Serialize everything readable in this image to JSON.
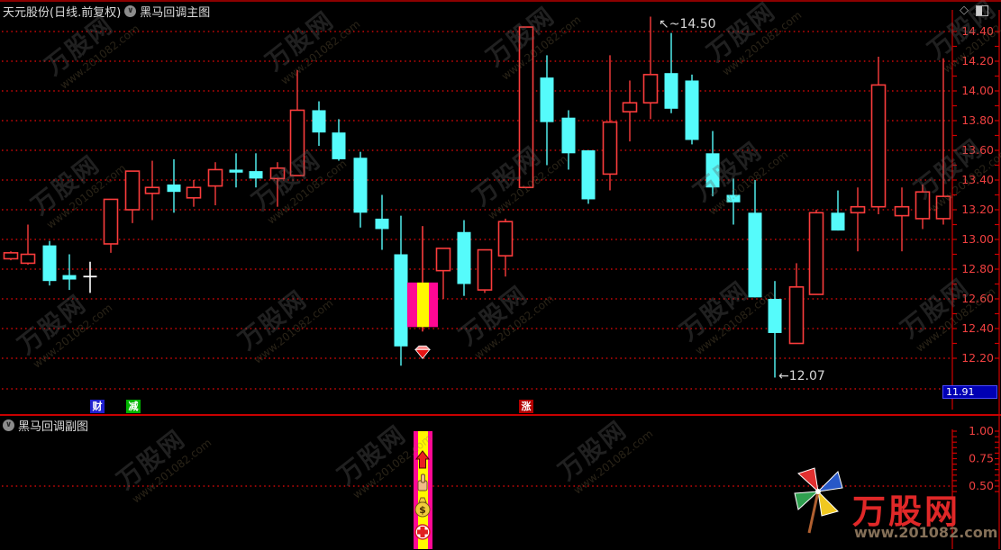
{
  "header": {
    "stock_title": "天元股份(日线.前复权)",
    "main_indicator": "黑马回调主图",
    "dropdown_icon": "∨",
    "diamond_icon": "◇",
    "window_icon": "split-window"
  },
  "subheader": {
    "sub_indicator": "黑马回调副图",
    "dropdown_icon": "∨"
  },
  "axis_main": {
    "last_price": "11.91",
    "tick_step_minor": 0.1
  },
  "badges": [
    {
      "text": "财",
      "bg": "#2020d0"
    },
    {
      "text": "减",
      "bg": "#00b400"
    },
    {
      "text": "涨",
      "bg": "#b40000"
    }
  ],
  "watermark": {
    "text_cn": "万股网",
    "text_url": "www.201082.com"
  },
  "logo": {
    "site_name": "万股网",
    "site_url": "www.201082.com"
  },
  "colors": {
    "up": "#fa3c3c",
    "down": "#55fbfb",
    "doji": "#ffffff",
    "signal_magenta": "#ff0894",
    "signal_yellow": "#fff800",
    "grid": "#c40808",
    "axis_text": "#f04040",
    "separator": "#c80000",
    "annotation": "#d8d8d8",
    "last_price_bg": "#0000b4"
  },
  "chart_data": [
    {
      "type": "candlestick",
      "title": "天元股份(日线.前复权) 黑马回调主图",
      "ylim": [
        11.95,
        14.47
      ],
      "yticks": [
        14.4,
        14.2,
        14.0,
        13.8,
        13.6,
        13.4,
        13.2,
        13.0,
        12.8,
        12.6,
        12.4,
        12.2
      ],
      "grid": "dotted horizontal at each 0.20",
      "legend_position": "none",
      "annotations": [
        {
          "label": "14.50",
          "prefix": "↖~",
          "value": 14.5,
          "x": 731,
          "ty": 31,
          "kind": "high-marker"
        },
        {
          "label": "12.07",
          "prefix": "←",
          "value": 12.07,
          "x": 864,
          "ty": 422,
          "kind": "low-marker"
        }
      ],
      "last_price": 11.91,
      "candles": [
        {
          "x": 12,
          "o": 12.87,
          "h": 12.92,
          "l": 12.86,
          "c": 12.91,
          "k": "u"
        },
        {
          "x": 31,
          "o": 12.84,
          "h": 13.1,
          "l": 12.83,
          "c": 12.9,
          "k": "u"
        },
        {
          "x": 55,
          "o": 12.96,
          "h": 12.99,
          "l": 12.69,
          "c": 12.72,
          "k": "d"
        },
        {
          "x": 77,
          "o": 12.76,
          "h": 12.9,
          "l": 12.66,
          "c": 12.73,
          "k": "d"
        },
        {
          "x": 100,
          "o": 12.75,
          "h": 12.85,
          "l": 12.64,
          "c": 12.75,
          "k": "w"
        },
        {
          "x": 123,
          "o": 12.97,
          "h": 13.27,
          "l": 12.91,
          "c": 13.27,
          "k": "u"
        },
        {
          "x": 147,
          "o": 13.2,
          "h": 13.46,
          "l": 13.11,
          "c": 13.46,
          "k": "u"
        },
        {
          "x": 169,
          "o": 13.31,
          "h": 13.53,
          "l": 13.13,
          "c": 13.35,
          "k": "u"
        },
        {
          "x": 193,
          "o": 13.37,
          "h": 13.54,
          "l": 13.18,
          "c": 13.32,
          "k": "d"
        },
        {
          "x": 215,
          "o": 13.28,
          "h": 13.4,
          "l": 13.22,
          "c": 13.35,
          "k": "u"
        },
        {
          "x": 239,
          "o": 13.36,
          "h": 13.52,
          "l": 13.23,
          "c": 13.47,
          "k": "u"
        },
        {
          "x": 262,
          "o": 13.47,
          "h": 13.58,
          "l": 13.35,
          "c": 13.45,
          "k": "d"
        },
        {
          "x": 284,
          "o": 13.46,
          "h": 13.58,
          "l": 13.35,
          "c": 13.41,
          "k": "d"
        },
        {
          "x": 308,
          "o": 13.41,
          "h": 13.52,
          "l": 13.22,
          "c": 13.48,
          "k": "u"
        },
        {
          "x": 330,
          "o": 13.43,
          "h": 14.14,
          "l": 13.43,
          "c": 13.87,
          "k": "u"
        },
        {
          "x": 354,
          "o": 13.87,
          "h": 13.93,
          "l": 13.63,
          "c": 13.72,
          "k": "d"
        },
        {
          "x": 376,
          "o": 13.72,
          "h": 13.81,
          "l": 13.53,
          "c": 13.54,
          "k": "d"
        },
        {
          "x": 400,
          "o": 13.55,
          "h": 13.59,
          "l": 13.08,
          "c": 13.18,
          "k": "d"
        },
        {
          "x": 424,
          "o": 13.14,
          "h": 13.3,
          "l": 12.93,
          "c": 13.07,
          "k": "d"
        },
        {
          "x": 445,
          "o": 12.9,
          "h": 13.16,
          "l": 12.15,
          "c": 12.28,
          "k": "d"
        },
        {
          "x": 469,
          "o": 12.71,
          "h": 13.09,
          "l": 12.38,
          "c": 12.41,
          "k": "s"
        },
        {
          "x": 492,
          "o": 12.79,
          "h": 12.94,
          "l": 12.6,
          "c": 12.94,
          "k": "u"
        },
        {
          "x": 515,
          "o": 13.05,
          "h": 13.13,
          "l": 12.62,
          "c": 12.7,
          "k": "d"
        },
        {
          "x": 538,
          "o": 12.66,
          "h": 12.93,
          "l": 12.64,
          "c": 12.93,
          "k": "u"
        },
        {
          "x": 561,
          "o": 12.89,
          "h": 13.14,
          "l": 12.75,
          "c": 13.12,
          "k": "u"
        },
        {
          "x": 584,
          "o": 13.35,
          "h": 14.43,
          "l": 13.35,
          "c": 14.43,
          "k": "u"
        },
        {
          "x": 607,
          "o": 14.09,
          "h": 14.24,
          "l": 13.5,
          "c": 13.79,
          "k": "d"
        },
        {
          "x": 631,
          "o": 13.82,
          "h": 13.87,
          "l": 13.47,
          "c": 13.58,
          "k": "d"
        },
        {
          "x": 653,
          "o": 13.6,
          "h": 13.6,
          "l": 13.24,
          "c": 13.27,
          "k": "d"
        },
        {
          "x": 677,
          "o": 13.44,
          "h": 14.24,
          "l": 13.33,
          "c": 13.79,
          "k": "u"
        },
        {
          "x": 699,
          "o": 13.86,
          "h": 14.07,
          "l": 13.66,
          "c": 13.92,
          "k": "u"
        },
        {
          "x": 722,
          "o": 13.92,
          "h": 14.5,
          "l": 13.81,
          "c": 14.11,
          "k": "u"
        },
        {
          "x": 745,
          "o": 14.12,
          "h": 14.39,
          "l": 13.85,
          "c": 13.88,
          "k": "d"
        },
        {
          "x": 768,
          "o": 14.07,
          "h": 14.11,
          "l": 13.64,
          "c": 13.67,
          "k": "d"
        },
        {
          "x": 791,
          "o": 13.58,
          "h": 13.73,
          "l": 13.29,
          "c": 13.35,
          "k": "d"
        },
        {
          "x": 814,
          "o": 13.3,
          "h": 13.41,
          "l": 13.1,
          "c": 13.25,
          "k": "d"
        },
        {
          "x": 838,
          "o": 13.18,
          "h": 13.4,
          "l": 12.61,
          "c": 12.61,
          "k": "d"
        },
        {
          "x": 860,
          "o": 12.6,
          "h": 12.72,
          "l": 12.07,
          "c": 12.37,
          "k": "d"
        },
        {
          "x": 884,
          "o": 12.3,
          "h": 12.84,
          "l": 12.3,
          "c": 12.68,
          "k": "u"
        },
        {
          "x": 906,
          "o": 12.63,
          "h": 13.2,
          "l": 12.63,
          "c": 13.18,
          "k": "u"
        },
        {
          "x": 930,
          "o": 13.18,
          "h": 13.33,
          "l": 13.06,
          "c": 13.06,
          "k": "d"
        },
        {
          "x": 952,
          "o": 13.18,
          "h": 13.35,
          "l": 12.92,
          "c": 13.22,
          "k": "u"
        },
        {
          "x": 975,
          "o": 13.22,
          "h": 14.23,
          "l": 13.17,
          "c": 14.04,
          "k": "u"
        },
        {
          "x": 1001,
          "o": 13.16,
          "h": 13.35,
          "l": 12.92,
          "c": 13.22,
          "k": "u"
        },
        {
          "x": 1024,
          "o": 13.14,
          "h": 13.37,
          "l": 13.07,
          "c": 13.32,
          "k": "u"
        },
        {
          "x": 1047,
          "o": 13.14,
          "h": 14.22,
          "l": 13.1,
          "c": 13.29,
          "k": "u"
        }
      ]
    },
    {
      "type": "bar",
      "title": "黑马回调副图",
      "ylim": [
        0,
        1.07
      ],
      "yticks": [
        1.0,
        0.75,
        0.5
      ],
      "gridline_value": 0.5,
      "signal": {
        "index": 20,
        "x": 469,
        "value": 1.0,
        "bar_style": "magenta-yellow-magenta striped",
        "icons": [
          "up-arrow",
          "pointing-hand",
          "money-bag",
          "medical-cross"
        ]
      }
    }
  ]
}
